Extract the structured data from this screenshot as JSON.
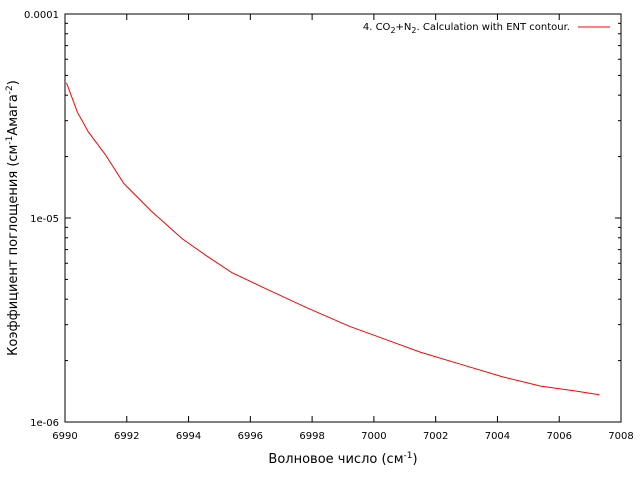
{
  "chart_data": {
    "type": "line",
    "xlabel": "Волновое число (см",
    "xlabel_sup": "-1",
    "xlabel_end": ")",
    "ylabel_part1": "Коэффициент поглощения (см",
    "ylabel_sup1": "-1",
    "ylabel_part2": "Амага",
    "ylabel_sup2": "-2",
    "ylabel_end": ")",
    "xlim": [
      6990,
      7008
    ],
    "ylim": [
      1e-06,
      0.0001
    ],
    "yscale": "log",
    "x_ticks": [
      {
        "value": 6990,
        "label": "6990"
      },
      {
        "value": 6992,
        "label": "6992"
      },
      {
        "value": 6994,
        "label": "6994"
      },
      {
        "value": 6996,
        "label": "6996"
      },
      {
        "value": 6998,
        "label": "6998"
      },
      {
        "value": 7000,
        "label": "7000"
      },
      {
        "value": 7002,
        "label": "7002"
      },
      {
        "value": 7004,
        "label": "7004"
      },
      {
        "value": 7006,
        "label": "7006"
      },
      {
        "value": 7008,
        "label": "7008"
      }
    ],
    "y_ticks": [
      {
        "value": 1e-06,
        "label": "1e-06"
      },
      {
        "value": 1e-05,
        "label": "1e-05"
      },
      {
        "value": 0.0001,
        "label": "0.0001"
      }
    ],
    "legend_position": "top-right",
    "series": [
      {
        "name_parts": [
          "4. CO",
          "2",
          "+N",
          "2",
          ". Calculation with ENT contour."
        ],
        "color": "#ff0000",
        "x": [
          6990.05,
          6990.4,
          6990.75,
          6991.3,
          6991.9,
          6992.8,
          6993.8,
          6994.6,
          6995.4,
          6996.5,
          6997.8,
          6999.2,
          7000.5,
          7001.5,
          7002.8,
          7004.2,
          7005.4,
          7006.5,
          7007.3
        ],
        "y": [
          4.6e-05,
          3.3e-05,
          2.65e-05,
          2.05e-05,
          1.48e-05,
          1.08e-05,
          7.9e-06,
          6.5e-06,
          5.4e-06,
          4.5e-06,
          3.65e-06,
          2.95e-06,
          2.5e-06,
          2.2e-06,
          1.92e-06,
          1.66e-06,
          1.5e-06,
          1.42e-06,
          1.36e-06
        ]
      }
    ]
  }
}
